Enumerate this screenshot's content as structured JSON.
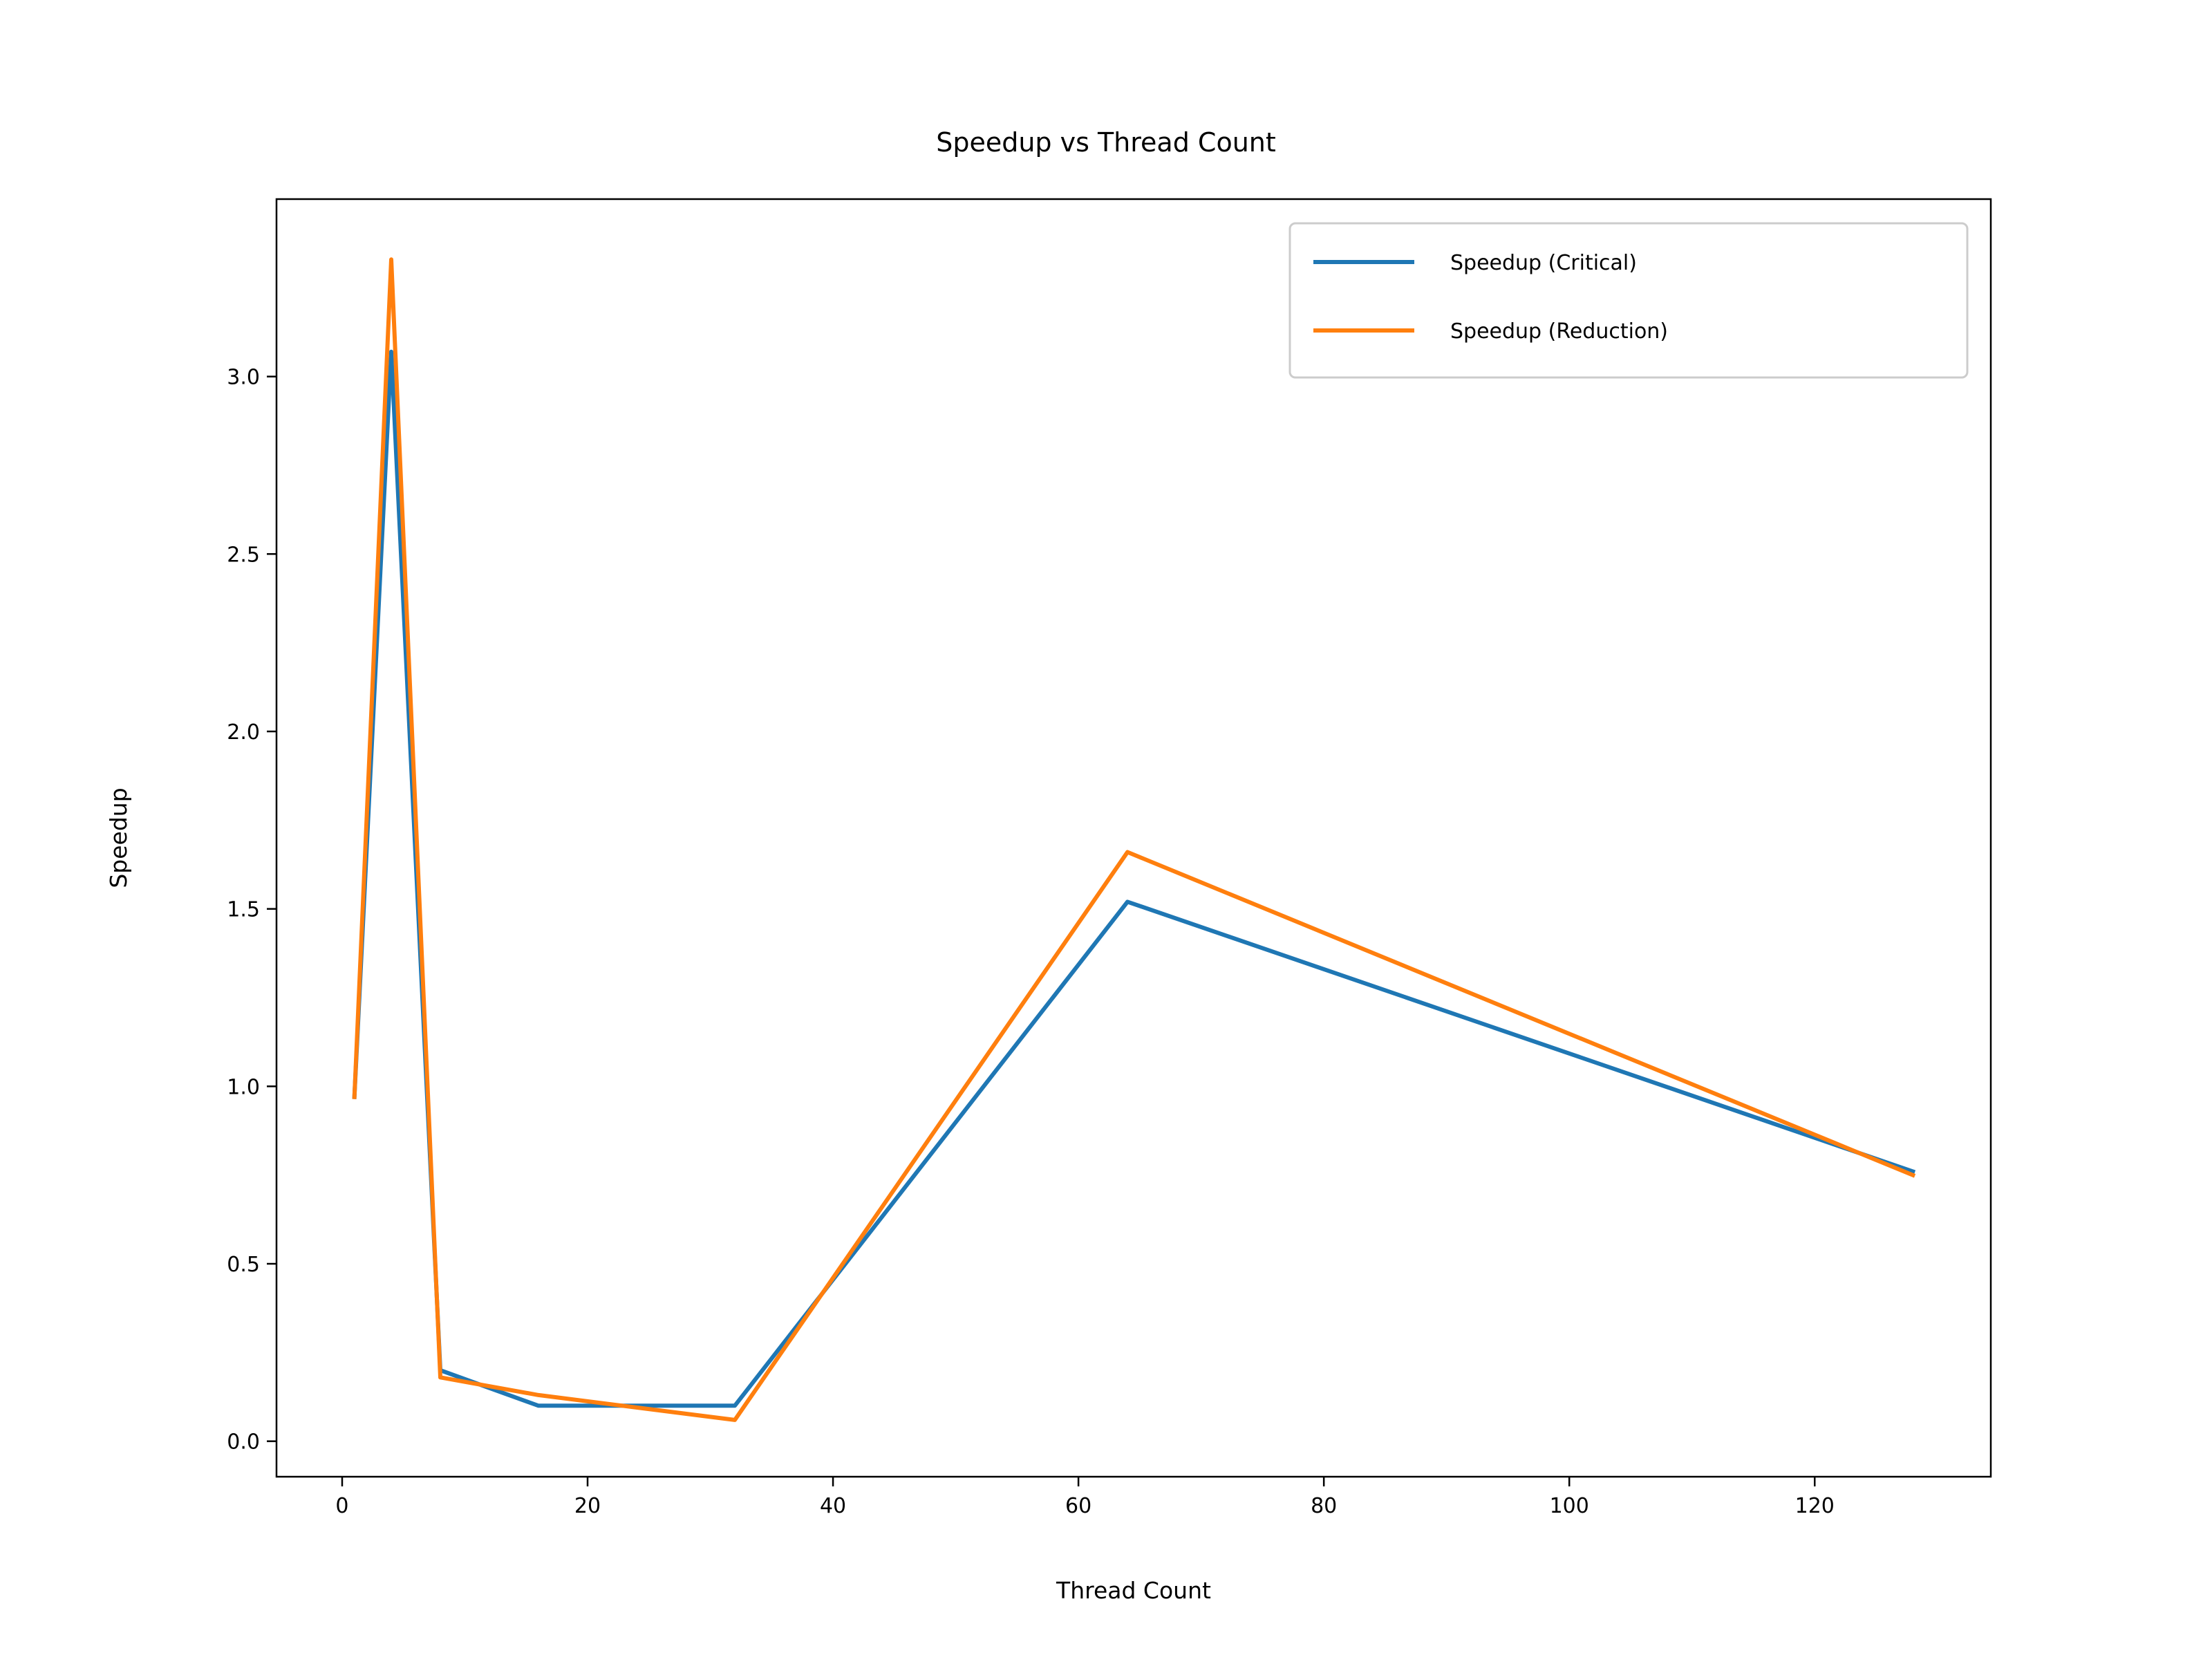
{
  "chart_data": {
    "type": "line",
    "title": "Speedup vs Thread Count",
    "xlabel": "Thread Count",
    "ylabel": "Speedup",
    "xlim": [
      -5.35,
      134.35
    ],
    "ylim": [
      -0.1,
      3.5
    ],
    "x_ticks": [
      0,
      20,
      40,
      60,
      80,
      100,
      120
    ],
    "x_tick_labels": [
      "0",
      "20",
      "40",
      "60",
      "80",
      "100",
      "120"
    ],
    "y_ticks": [
      0.0,
      0.5,
      1.0,
      1.5,
      2.0,
      2.5,
      3.0
    ],
    "y_tick_labels": [
      "0.0",
      "0.5",
      "1.0",
      "1.5",
      "2.0",
      "2.5",
      "3.0"
    ],
    "grid": false,
    "legend_position": "upper right",
    "x": [
      1,
      4,
      8,
      16,
      32,
      64,
      128
    ],
    "series": [
      {
        "name": "Speedup (Critical)",
        "color": "#1f77b4",
        "values": [
          0.97,
          3.07,
          0.2,
          0.1,
          0.1,
          1.52,
          0.76
        ]
      },
      {
        "name": "Speedup (Reduction)",
        "color": "#ff7f0e",
        "values": [
          0.97,
          3.33,
          0.18,
          0.13,
          0.06,
          1.66,
          0.75
        ]
      }
    ]
  }
}
